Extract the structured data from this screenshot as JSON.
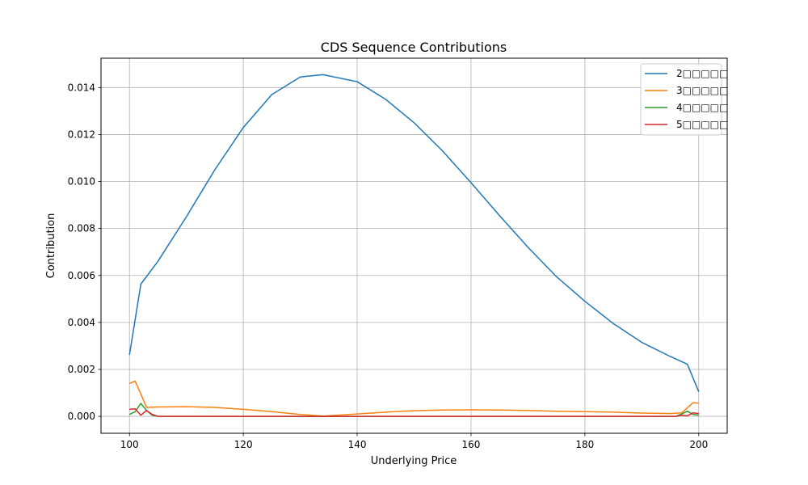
{
  "chart_data": {
    "type": "line",
    "title": "CDS Sequence Contributions",
    "xlabel": "Underlying Price",
    "ylabel": "Contribution",
    "xlim": [
      95,
      205
    ],
    "ylim": [
      -0.00072,
      0.01525
    ],
    "xticks": [
      100,
      120,
      140,
      160,
      180,
      200
    ],
    "xtick_labels": [
      "100",
      "120",
      "140",
      "160",
      "180",
      "200"
    ],
    "yticks": [
      0.0,
      0.002,
      0.004,
      0.006,
      0.008,
      0.01,
      0.012,
      0.014
    ],
    "ytick_labels": [
      "0.000",
      "0.002",
      "0.004",
      "0.006",
      "0.008",
      "0.010",
      "0.012",
      "0.014"
    ],
    "grid": true,
    "legend_position": "top-right",
    "series": [
      {
        "name": "2□□□□□",
        "color": "#1f77b4",
        "x": [
          100,
          102,
          105,
          110,
          115,
          120,
          125,
          130,
          134,
          140,
          145,
          150,
          155,
          160,
          165,
          170,
          175,
          180,
          185,
          190,
          195,
          198,
          200
        ],
        "y": [
          0.00262,
          0.00563,
          0.0066,
          0.0085,
          0.0105,
          0.0123,
          0.0137,
          0.01445,
          0.01455,
          0.01425,
          0.0135,
          0.0125,
          0.0113,
          0.00995,
          0.00855,
          0.0072,
          0.00595,
          0.0049,
          0.00395,
          0.00315,
          0.00255,
          0.00222,
          0.00105
        ]
      },
      {
        "name": "3□□□□□",
        "color": "#ff7f0e",
        "x": [
          100,
          101,
          102,
          103,
          105,
          110,
          115,
          120,
          125,
          130,
          134,
          140,
          145,
          150,
          155,
          160,
          165,
          170,
          175,
          180,
          185,
          190,
          195,
          197,
          199,
          200
        ],
        "y": [
          0.0014,
          0.0015,
          0.00095,
          0.00038,
          0.0004,
          0.00041,
          0.00038,
          0.0003,
          0.0002,
          8e-05,
          1e-05,
          0.0001,
          0.00018,
          0.00024,
          0.00027,
          0.00028,
          0.00027,
          0.00025,
          0.00022,
          0.0002,
          0.00018,
          0.00014,
          0.00012,
          0.00015,
          0.00058,
          0.00056
        ]
      },
      {
        "name": "4□□□□□",
        "color": "#2ca02c",
        "x": [
          100,
          101,
          102,
          103,
          104,
          105,
          110,
          120,
          140,
          160,
          180,
          195,
          196,
          197,
          198,
          199,
          200
        ],
        "y": [
          8e-05,
          0.0002,
          0.00055,
          0.00025,
          5e-05,
          0.0,
          0.0,
          0.0,
          0.0,
          0.0,
          0.0,
          0.0,
          0.0,
          0.0001,
          0.00022,
          8e-05,
          5e-05
        ]
      },
      {
        "name": "5□□□□□",
        "color": "#d62728",
        "x": [
          100,
          101,
          102,
          103,
          104,
          105,
          110,
          120,
          140,
          160,
          180,
          196,
          197,
          198,
          199,
          200
        ],
        "y": [
          0.0003,
          0.00032,
          5e-05,
          0.00025,
          8e-05,
          0.0,
          0.0,
          0.0,
          0.0,
          0.0,
          0.0,
          0.0,
          5e-05,
          2e-05,
          0.00015,
          0.00012
        ]
      }
    ]
  }
}
